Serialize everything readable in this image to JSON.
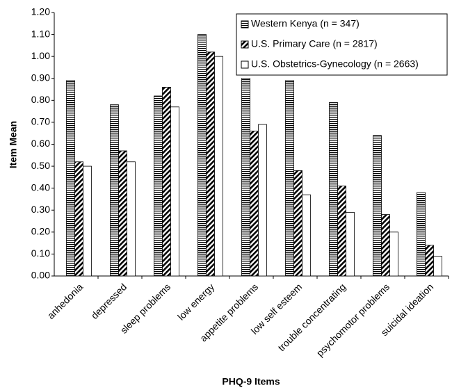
{
  "chart_data": {
    "type": "bar",
    "x_label": "PHQ-9 Items",
    "y_label": "Item Mean",
    "categories": [
      "anhedonia",
      "depressed",
      "sleep problems",
      "low energy",
      "appetite problems",
      "low self esteem",
      "trouble concentrating",
      "psychomotor problems",
      "suicidal ideation"
    ],
    "series": [
      {
        "name": "Western Kenya (n = 347)",
        "color": "#000000",
        "pattern": "horizontal",
        "values": [
          0.89,
          0.78,
          0.82,
          1.1,
          0.9,
          0.89,
          0.79,
          0.64,
          0.38
        ]
      },
      {
        "name": "U.S. Primary Care (n = 2817)",
        "color": "#000000",
        "pattern": "diagonal",
        "values": [
          0.52,
          0.57,
          0.86,
          1.02,
          0.66,
          0.48,
          0.41,
          0.28,
          0.14
        ]
      },
      {
        "name": "U.S. Obstetrics-Gynecology (n = 2663)",
        "color": "#000000",
        "pattern": "none",
        "values": [
          0.5,
          0.52,
          0.77,
          1.0,
          0.69,
          0.37,
          0.29,
          0.2,
          0.09
        ]
      }
    ],
    "ylim": [
      0,
      1.2
    ],
    "yticks": [
      {
        "value": 0,
        "label": "0.00"
      },
      {
        "value": 0.1,
        "label": "0.10"
      },
      {
        "value": 0.2,
        "label": "0.20"
      },
      {
        "value": 0.3,
        "label": "0.30"
      },
      {
        "value": 0.4,
        "label": "0.40"
      },
      {
        "value": 0.5,
        "label": "0.50"
      },
      {
        "value": 0.6,
        "label": "0.60"
      },
      {
        "value": 0.7,
        "label": "0.70"
      },
      {
        "value": 0.8,
        "label": "0.80"
      },
      {
        "value": 0.9,
        "label": "0.90"
      },
      {
        "value": 1,
        "label": "1.00"
      },
      {
        "value": 1.1,
        "label": "1.10"
      },
      {
        "value": 1.2,
        "label": "1.20"
      }
    ],
    "grid": false,
    "legend": "top-right"
  }
}
